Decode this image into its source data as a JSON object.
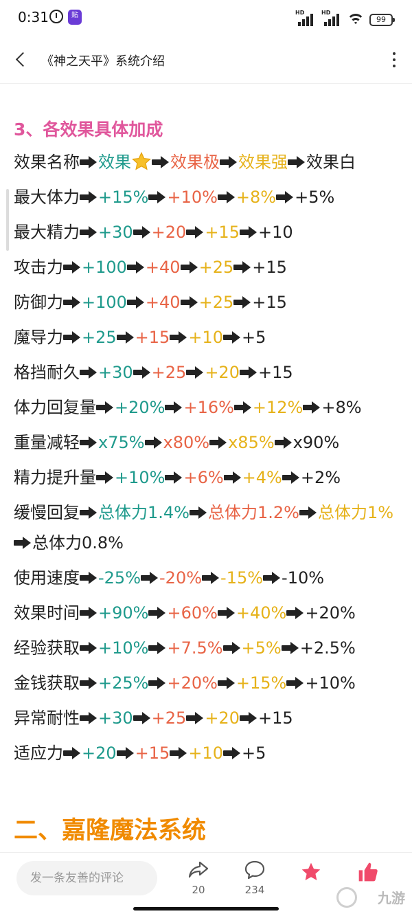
{
  "status_bar": {
    "time": "0:31",
    "app_icon_text": "贴",
    "network_1": "HD",
    "network_2": "HD",
    "battery": "99"
  },
  "header": {
    "title": "《神之天平》系统介绍"
  },
  "article": {
    "section_title": "3、各效果具体加成",
    "rows": [
      {
        "name": "效果名称",
        "v1": "效果",
        "v2": "效果极",
        "v3": "效果强",
        "v4": "效果白"
      },
      {
        "name": "最大体力",
        "v1": "+15%",
        "v2": "+10%",
        "v3": "+8%",
        "v4": "+5%"
      },
      {
        "name": "最大精力",
        "v1": "+30",
        "v2": "+20",
        "v3": "+15",
        "v4": "+10"
      },
      {
        "name": "攻击力",
        "v1": "+100",
        "v2": "+40",
        "v3": "+25",
        "v4": "+15"
      },
      {
        "name": "防御力",
        "v1": "+100",
        "v2": "+40",
        "v3": "+25",
        "v4": "+15"
      },
      {
        "name": "魔导力",
        "v1": "+25",
        "v2": "+15",
        "v3": "+10",
        "v4": "+5"
      },
      {
        "name": "格挡耐久",
        "v1": "+30",
        "v2": "+25",
        "v3": "+20",
        "v4": "+15"
      },
      {
        "name": "体力回复量",
        "v1": "+20%",
        "v2": "+16%",
        "v3": "+12%",
        "v4": "+8%"
      },
      {
        "name": "重量减轻",
        "v1": "x75%",
        "v2": "x80%",
        "v3": "x85%",
        "v4": "x90%"
      },
      {
        "name": "精力提升量",
        "v1": "+10%",
        "v2": "+6%",
        "v3": "+4%",
        "v4": "+2%"
      },
      {
        "name": "缓慢回复",
        "v1": "总体力1.4%",
        "v2": "总体力1.2%",
        "v3": "总体力1%",
        "v4": "总体力0.8%"
      },
      {
        "name": "使用速度",
        "v1": "-25%",
        "v2": "-20%",
        "v3": "-15%",
        "v4": "-10%"
      },
      {
        "name": "效果时间",
        "v1": "+90%",
        "v2": "+60%",
        "v3": "+40%",
        "v4": "+20%"
      },
      {
        "name": "经验获取",
        "v1": "+10%",
        "v2": "+7.5%",
        "v3": "+5%",
        "v4": "+2.5%"
      },
      {
        "name": "金钱获取",
        "v1": "+25%",
        "v2": "+20%",
        "v3": "+15%",
        "v4": "+10%"
      },
      {
        "name": "异常耐性",
        "v1": "+30",
        "v2": "+25",
        "v3": "+20",
        "v4": "+15"
      },
      {
        "name": "适应力",
        "v1": "+20",
        "v2": "+15",
        "v3": "+10",
        "v4": "+5"
      }
    ],
    "next_section_title": "二、嘉隆魔法系统"
  },
  "bottom_bar": {
    "comment_placeholder": "发一条友善的评论",
    "share_count": "20",
    "comment_count": "234"
  },
  "colors": {
    "section_title": "#e0579c",
    "tier1": "#1f9a8c",
    "tier2": "#e86446",
    "tier3": "#e6b21a",
    "h2_title": "#f08a00",
    "favorite": "#f04a6a"
  },
  "icons": [
    "back-arrow-icon",
    "more-icon",
    "star-icon",
    "arrow-right-icon",
    "share-icon",
    "comment-icon",
    "favorite-star-icon",
    "thumbs-up-icon"
  ],
  "watermark": "九游"
}
